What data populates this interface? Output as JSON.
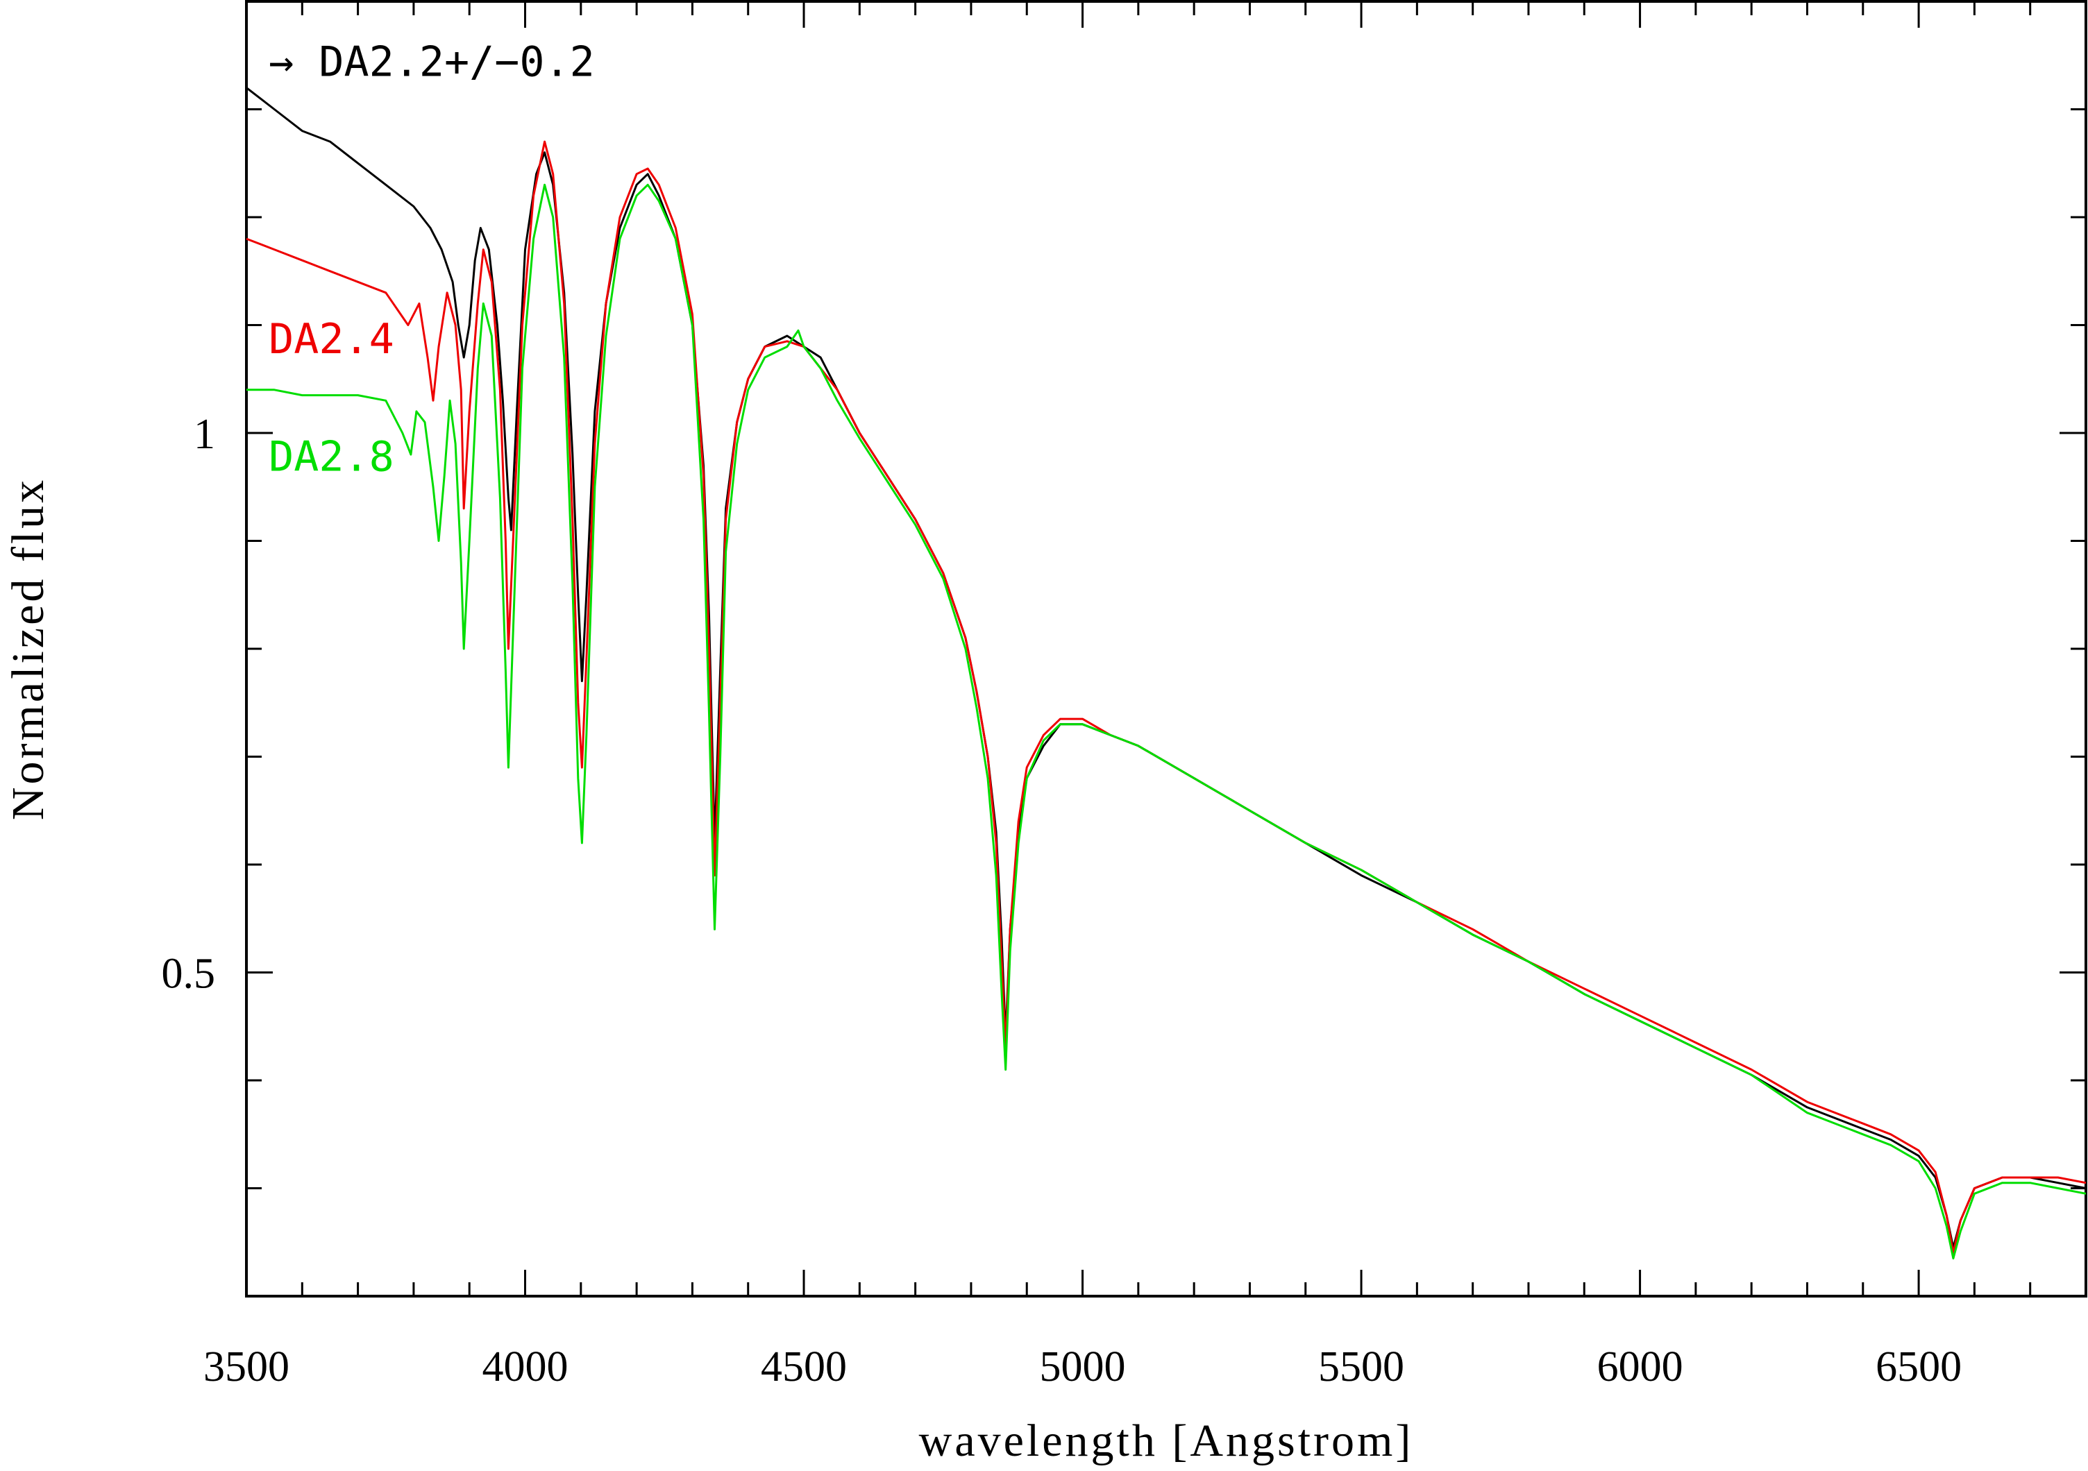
{
  "chart_data": {
    "type": "line",
    "title": "",
    "xlabel": "wavelength [Angstrom]",
    "ylabel": "Normalized flux",
    "xlim": [
      3500,
      6800
    ],
    "ylim": [
      0.2,
      1.4
    ],
    "x_major_ticks": [
      3500,
      4000,
      4500,
      5000,
      5500,
      6000,
      6500
    ],
    "x_tick_labels": [
      "3500",
      "4000",
      "4500",
      "5000",
      "5500",
      "6000",
      "6500"
    ],
    "x_minor_step": 100,
    "y_ticks": [
      0.3,
      0.4,
      0.5,
      0.6,
      0.7,
      0.8,
      0.9,
      1.0,
      1.1,
      1.2,
      1.3
    ],
    "y_tick_labels": [
      {
        "value": 0.5,
        "label": "0.5"
      },
      {
        "value": 1.0,
        "label": "1"
      }
    ],
    "grid": false,
    "annotations": [
      {
        "text": "→ DA2.2+/−0.2",
        "color": "#000000",
        "x": 3540,
        "y": 1.331
      },
      {
        "text": "DA2.4",
        "color": "#ee0000",
        "x": 3540,
        "y": 1.074
      },
      {
        "text": "DA2.8",
        "color": "#00dd00",
        "x": 3540,
        "y": 0.965
      }
    ],
    "series": [
      {
        "label": "DA2.2+/-0.2",
        "color": "#000000",
        "points": [
          [
            3500,
            1.32
          ],
          [
            3550,
            1.3
          ],
          [
            3600,
            1.28
          ],
          [
            3650,
            1.27
          ],
          [
            3700,
            1.25
          ],
          [
            3750,
            1.23
          ],
          [
            3800,
            1.21
          ],
          [
            3830,
            1.19
          ],
          [
            3850,
            1.17
          ],
          [
            3870,
            1.14
          ],
          [
            3880,
            1.1
          ],
          [
            3890,
            1.07
          ],
          [
            3900,
            1.1
          ],
          [
            3910,
            1.16
          ],
          [
            3920,
            1.19
          ],
          [
            3935,
            1.17
          ],
          [
            3950,
            1.1
          ],
          [
            3960,
            1.03
          ],
          [
            3970,
            0.94
          ],
          [
            3975,
            0.91
          ],
          [
            3985,
            1.02
          ],
          [
            4000,
            1.17
          ],
          [
            4020,
            1.24
          ],
          [
            4035,
            1.26
          ],
          [
            4050,
            1.23
          ],
          [
            4070,
            1.13
          ],
          [
            4085,
            0.98
          ],
          [
            4095,
            0.85
          ],
          [
            4102,
            0.77
          ],
          [
            4110,
            0.85
          ],
          [
            4125,
            1.02
          ],
          [
            4145,
            1.12
          ],
          [
            4170,
            1.19
          ],
          [
            4200,
            1.23
          ],
          [
            4220,
            1.24
          ],
          [
            4240,
            1.22
          ],
          [
            4270,
            1.18
          ],
          [
            4300,
            1.1
          ],
          [
            4320,
            0.97
          ],
          [
            4330,
            0.83
          ],
          [
            4340,
            0.62
          ],
          [
            4350,
            0.78
          ],
          [
            4360,
            0.93
          ],
          [
            4380,
            1.01
          ],
          [
            4400,
            1.05
          ],
          [
            4430,
            1.08
          ],
          [
            4470,
            1.09
          ],
          [
            4500,
            1.08
          ],
          [
            4530,
            1.07
          ],
          [
            4560,
            1.04
          ],
          [
            4600,
            1.0
          ],
          [
            4650,
            0.96
          ],
          [
            4700,
            0.92
          ],
          [
            4750,
            0.87
          ],
          [
            4790,
            0.81
          ],
          [
            4810,
            0.76
          ],
          [
            4830,
            0.7
          ],
          [
            4845,
            0.63
          ],
          [
            4855,
            0.53
          ],
          [
            4862,
            0.44
          ],
          [
            4870,
            0.54
          ],
          [
            4885,
            0.63
          ],
          [
            4900,
            0.68
          ],
          [
            4930,
            0.71
          ],
          [
            4960,
            0.73
          ],
          [
            5000,
            0.73
          ],
          [
            5050,
            0.72
          ],
          [
            5100,
            0.71
          ],
          [
            5200,
            0.68
          ],
          [
            5300,
            0.65
          ],
          [
            5400,
            0.62
          ],
          [
            5500,
            0.59
          ],
          [
            5600,
            0.565
          ],
          [
            5700,
            0.535
          ],
          [
            5800,
            0.51
          ],
          [
            5900,
            0.48
          ],
          [
            6000,
            0.455
          ],
          [
            6100,
            0.43
          ],
          [
            6200,
            0.405
          ],
          [
            6300,
            0.375
          ],
          [
            6400,
            0.355
          ],
          [
            6450,
            0.345
          ],
          [
            6500,
            0.33
          ],
          [
            6530,
            0.31
          ],
          [
            6550,
            0.275
          ],
          [
            6562,
            0.245
          ],
          [
            6575,
            0.27
          ],
          [
            6600,
            0.3
          ],
          [
            6650,
            0.31
          ],
          [
            6700,
            0.31
          ],
          [
            6750,
            0.305
          ],
          [
            6800,
            0.3
          ]
        ]
      },
      {
        "label": "DA2.4",
        "color": "#ee0000",
        "points": [
          [
            3500,
            1.18
          ],
          [
            3550,
            1.17
          ],
          [
            3600,
            1.16
          ],
          [
            3650,
            1.15
          ],
          [
            3700,
            1.14
          ],
          [
            3750,
            1.13
          ],
          [
            3790,
            1.1
          ],
          [
            3810,
            1.12
          ],
          [
            3825,
            1.07
          ],
          [
            3835,
            1.03
          ],
          [
            3845,
            1.08
          ],
          [
            3860,
            1.13
          ],
          [
            3875,
            1.1
          ],
          [
            3885,
            1.04
          ],
          [
            3890,
            0.93
          ],
          [
            3900,
            1.02
          ],
          [
            3915,
            1.12
          ],
          [
            3925,
            1.17
          ],
          [
            3940,
            1.14
          ],
          [
            3955,
            1.04
          ],
          [
            3965,
            0.9
          ],
          [
            3970,
            0.8
          ],
          [
            3980,
            0.92
          ],
          [
            3995,
            1.1
          ],
          [
            4015,
            1.22
          ],
          [
            4035,
            1.27
          ],
          [
            4050,
            1.24
          ],
          [
            4070,
            1.12
          ],
          [
            4085,
            0.92
          ],
          [
            4095,
            0.75
          ],
          [
            4102,
            0.69
          ],
          [
            4110,
            0.79
          ],
          [
            4125,
            0.99
          ],
          [
            4145,
            1.12
          ],
          [
            4170,
            1.2
          ],
          [
            4200,
            1.24
          ],
          [
            4220,
            1.245
          ],
          [
            4240,
            1.23
          ],
          [
            4270,
            1.19
          ],
          [
            4300,
            1.11
          ],
          [
            4320,
            0.96
          ],
          [
            4330,
            0.8
          ],
          [
            4340,
            0.59
          ],
          [
            4350,
            0.75
          ],
          [
            4360,
            0.92
          ],
          [
            4380,
            1.01
          ],
          [
            4400,
            1.05
          ],
          [
            4430,
            1.08
          ],
          [
            4470,
            1.085
          ],
          [
            4500,
            1.08
          ],
          [
            4530,
            1.06
          ],
          [
            4560,
            1.04
          ],
          [
            4600,
            1.0
          ],
          [
            4650,
            0.96
          ],
          [
            4700,
            0.92
          ],
          [
            4750,
            0.87
          ],
          [
            4790,
            0.81
          ],
          [
            4810,
            0.76
          ],
          [
            4830,
            0.7
          ],
          [
            4845,
            0.62
          ],
          [
            4855,
            0.51
          ],
          [
            4862,
            0.43
          ],
          [
            4870,
            0.54
          ],
          [
            4885,
            0.64
          ],
          [
            4900,
            0.69
          ],
          [
            4930,
            0.72
          ],
          [
            4960,
            0.735
          ],
          [
            5000,
            0.735
          ],
          [
            5050,
            0.72
          ],
          [
            5100,
            0.71
          ],
          [
            5200,
            0.68
          ],
          [
            5300,
            0.65
          ],
          [
            5400,
            0.62
          ],
          [
            5500,
            0.595
          ],
          [
            5600,
            0.565
          ],
          [
            5700,
            0.54
          ],
          [
            5800,
            0.51
          ],
          [
            5900,
            0.485
          ],
          [
            6000,
            0.46
          ],
          [
            6100,
            0.435
          ],
          [
            6200,
            0.41
          ],
          [
            6300,
            0.38
          ],
          [
            6400,
            0.36
          ],
          [
            6450,
            0.35
          ],
          [
            6500,
            0.335
          ],
          [
            6530,
            0.315
          ],
          [
            6550,
            0.275
          ],
          [
            6562,
            0.24
          ],
          [
            6575,
            0.27
          ],
          [
            6600,
            0.3
          ],
          [
            6650,
            0.31
          ],
          [
            6700,
            0.31
          ],
          [
            6750,
            0.31
          ],
          [
            6800,
            0.305
          ]
        ]
      },
      {
        "label": "DA2.8",
        "color": "#00dd00",
        "points": [
          [
            3500,
            1.04
          ],
          [
            3550,
            1.04
          ],
          [
            3600,
            1.035
          ],
          [
            3650,
            1.035
          ],
          [
            3700,
            1.035
          ],
          [
            3750,
            1.03
          ],
          [
            3780,
            1.0
          ],
          [
            3795,
            0.98
          ],
          [
            3805,
            1.02
          ],
          [
            3820,
            1.01
          ],
          [
            3835,
            0.95
          ],
          [
            3845,
            0.9
          ],
          [
            3855,
            0.96
          ],
          [
            3865,
            1.03
          ],
          [
            3875,
            0.99
          ],
          [
            3885,
            0.88
          ],
          [
            3890,
            0.8
          ],
          [
            3900,
            0.9
          ],
          [
            3915,
            1.06
          ],
          [
            3925,
            1.12
          ],
          [
            3940,
            1.09
          ],
          [
            3955,
            0.94
          ],
          [
            3965,
            0.78
          ],
          [
            3970,
            0.69
          ],
          [
            3980,
            0.84
          ],
          [
            3995,
            1.06
          ],
          [
            4015,
            1.18
          ],
          [
            4035,
            1.23
          ],
          [
            4050,
            1.2
          ],
          [
            4070,
            1.07
          ],
          [
            4085,
            0.86
          ],
          [
            4095,
            0.68
          ],
          [
            4102,
            0.62
          ],
          [
            4110,
            0.72
          ],
          [
            4125,
            0.95
          ],
          [
            4145,
            1.09
          ],
          [
            4170,
            1.18
          ],
          [
            4200,
            1.22
          ],
          [
            4220,
            1.23
          ],
          [
            4240,
            1.215
          ],
          [
            4270,
            1.18
          ],
          [
            4300,
            1.1
          ],
          [
            4320,
            0.92
          ],
          [
            4330,
            0.74
          ],
          [
            4340,
            0.54
          ],
          [
            4350,
            0.7
          ],
          [
            4360,
            0.89
          ],
          [
            4380,
            0.99
          ],
          [
            4400,
            1.04
          ],
          [
            4430,
            1.07
          ],
          [
            4470,
            1.08
          ],
          [
            4490,
            1.095
          ],
          [
            4500,
            1.08
          ],
          [
            4530,
            1.06
          ],
          [
            4560,
            1.03
          ],
          [
            4600,
            0.995
          ],
          [
            4650,
            0.955
          ],
          [
            4700,
            0.915
          ],
          [
            4750,
            0.865
          ],
          [
            4790,
            0.8
          ],
          [
            4810,
            0.745
          ],
          [
            4830,
            0.68
          ],
          [
            4845,
            0.59
          ],
          [
            4855,
            0.48
          ],
          [
            4862,
            0.41
          ],
          [
            4870,
            0.52
          ],
          [
            4885,
            0.62
          ],
          [
            4900,
            0.68
          ],
          [
            4930,
            0.715
          ],
          [
            4960,
            0.73
          ],
          [
            5000,
            0.73
          ],
          [
            5050,
            0.72
          ],
          [
            5100,
            0.71
          ],
          [
            5200,
            0.68
          ],
          [
            5300,
            0.65
          ],
          [
            5400,
            0.62
          ],
          [
            5500,
            0.595
          ],
          [
            5600,
            0.565
          ],
          [
            5700,
            0.535
          ],
          [
            5800,
            0.51
          ],
          [
            5900,
            0.48
          ],
          [
            6000,
            0.455
          ],
          [
            6100,
            0.43
          ],
          [
            6200,
            0.405
          ],
          [
            6300,
            0.37
          ],
          [
            6400,
            0.35
          ],
          [
            6450,
            0.34
          ],
          [
            6500,
            0.325
          ],
          [
            6530,
            0.3
          ],
          [
            6550,
            0.265
          ],
          [
            6562,
            0.235
          ],
          [
            6575,
            0.26
          ],
          [
            6600,
            0.295
          ],
          [
            6650,
            0.305
          ],
          [
            6700,
            0.305
          ],
          [
            6750,
            0.3
          ],
          [
            6800,
            0.295
          ]
        ]
      }
    ]
  }
}
